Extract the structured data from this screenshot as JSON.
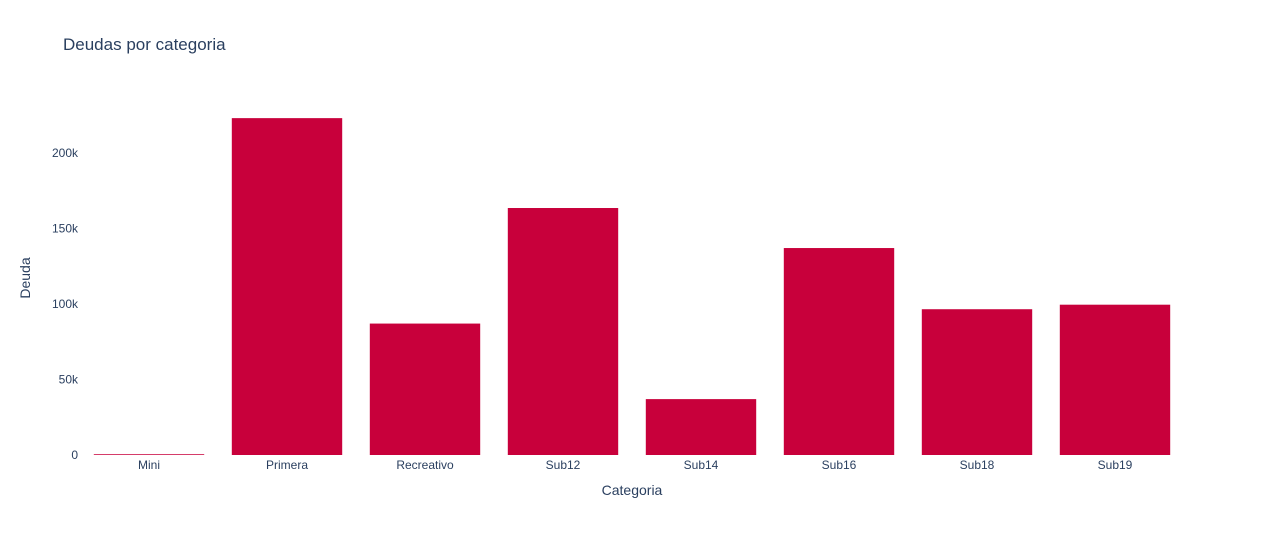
{
  "chart_data": {
    "type": "bar",
    "title": "Deudas por categoria",
    "xlabel": "Categoria",
    "ylabel": "Deuda",
    "categories": [
      "Mini",
      "Primera",
      "Recreativo",
      "Sub12",
      "Sub14",
      "Sub16",
      "Sub18",
      "Sub19"
    ],
    "values": [
      500,
      223000,
      87000,
      163500,
      37000,
      137000,
      96500,
      99500
    ],
    "ylim": [
      0,
      235000
    ],
    "yticks": [
      0,
      50000,
      100000,
      150000,
      200000
    ],
    "ytick_labels": [
      "0",
      "50k",
      "100k",
      "150k",
      "200k"
    ],
    "grid": false,
    "bar_color": "#c8003b",
    "text_color": "#2a3f5f"
  }
}
